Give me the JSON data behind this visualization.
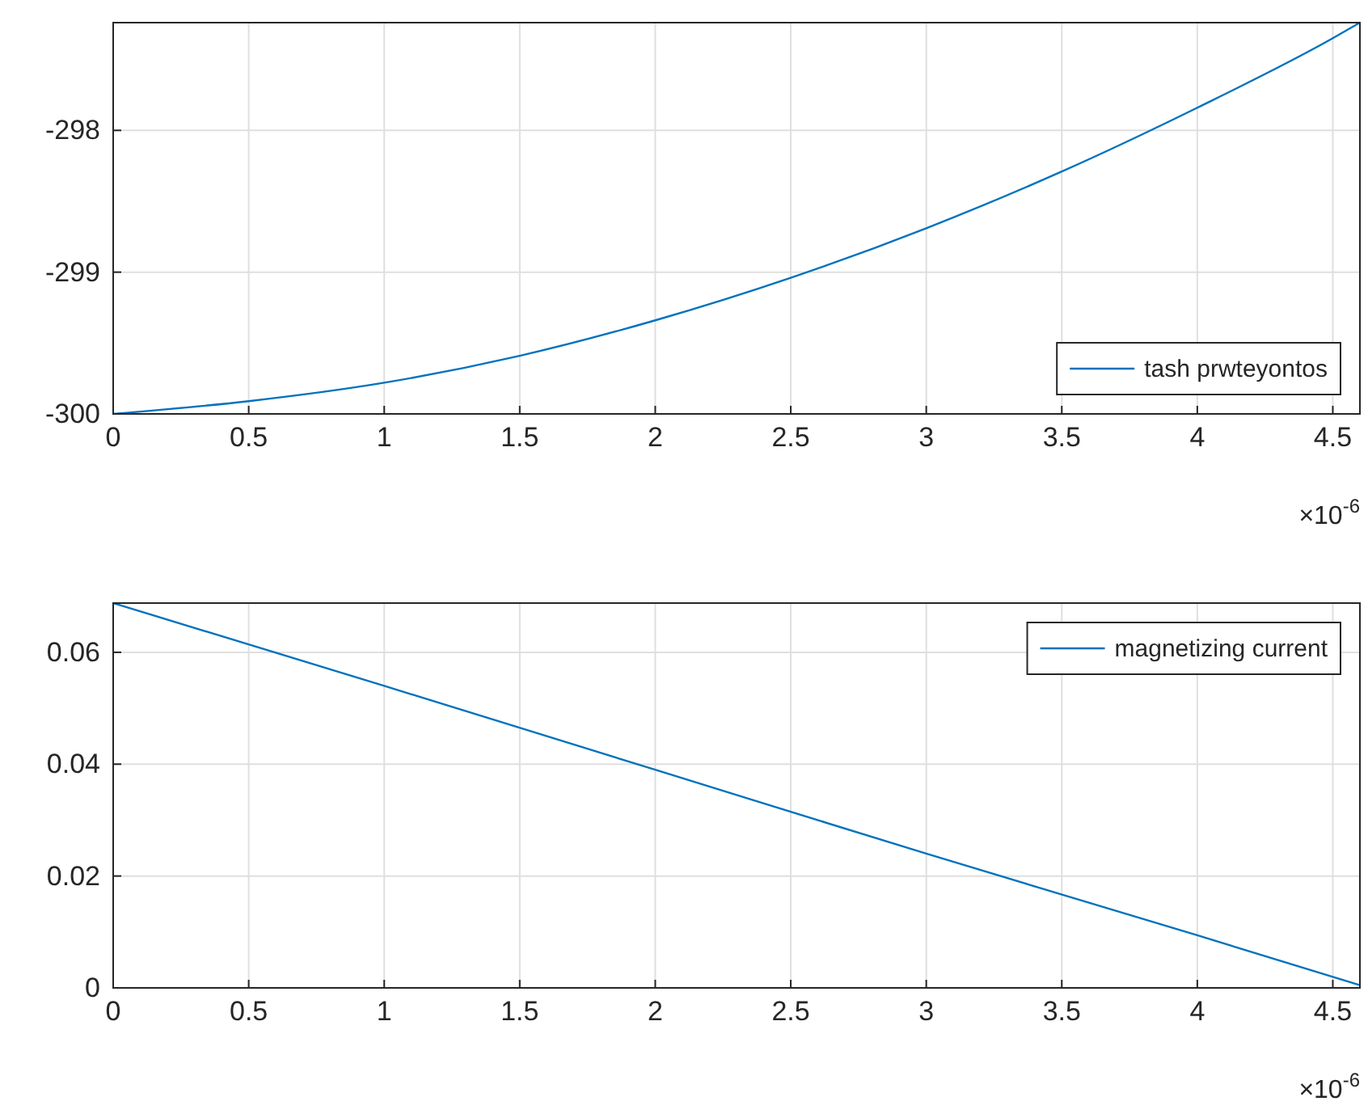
{
  "chart_data": [
    {
      "type": "line",
      "x": [
        0,
        0.5,
        1,
        1.5,
        2,
        2.5,
        3,
        3.5,
        4,
        4.5,
        4.6
      ],
      "series": [
        {
          "name": "tash prwteyontos",
          "color": "#0072bd",
          "values": [
            -300,
            -299.91,
            -299.78,
            -299.59,
            -299.34,
            -299.04,
            -298.69,
            -298.29,
            -297.84,
            -297.35,
            -297.24
          ]
        }
      ],
      "xlim": [
        0,
        4.6
      ],
      "xticks": [
        0,
        0.5,
        1,
        1.5,
        2,
        2.5,
        3,
        3.5,
        4,
        4.5
      ],
      "ylim": [
        -300,
        -297.24
      ],
      "yticks": [
        -300,
        -299,
        -298
      ],
      "grid": true,
      "legend": "bottom right",
      "annotations": [
        "×10$^{-6}$"
      ]
    },
    {
      "type": "line",
      "x": [
        0,
        1,
        2,
        3,
        4,
        4.6
      ],
      "series": [
        {
          "name": "magnetizing current",
          "color": "#0072bd",
          "values": [
            0.0688,
            0.054,
            0.039,
            0.024,
            0.0094,
            0.0005
          ]
        }
      ],
      "xlim": [
        0,
        4.6
      ],
      "xticks": [
        0,
        0.5,
        1,
        1.5,
        2,
        2.5,
        3,
        3.5,
        4,
        4.5
      ],
      "ylim": [
        0,
        0.0688
      ],
      "yticks": [
        0,
        0.02,
        0.04,
        0.06
      ],
      "grid": true,
      "legend": "top right",
      "annotations": [
        "×10$^{-6}$"
      ]
    }
  ]
}
